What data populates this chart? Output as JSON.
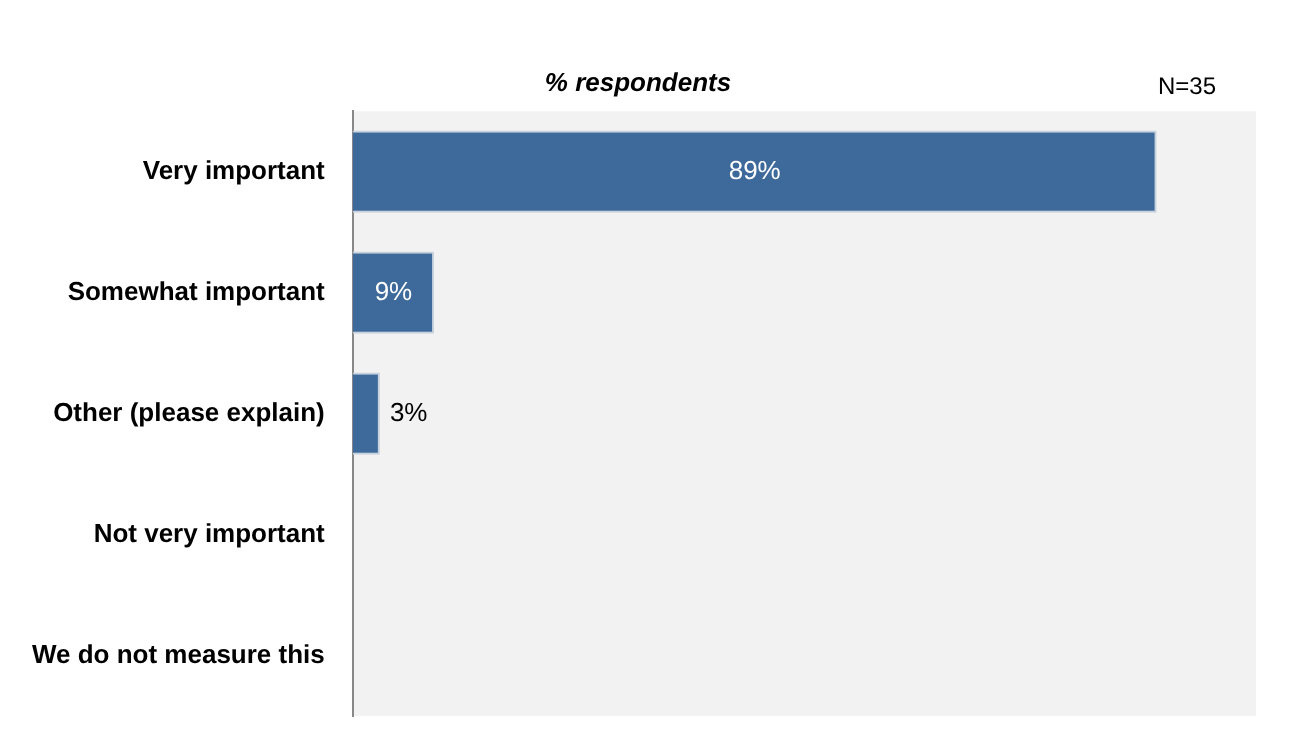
{
  "chart_data": {
    "type": "bar",
    "orientation": "horizontal",
    "title": "% respondents",
    "categories": [
      "Very important",
      "Somewhat important",
      "Other (please explain)",
      "Not very important",
      "We do not measure this"
    ],
    "values": [
      89,
      9,
      3,
      0,
      0
    ],
    "value_labels": [
      "89%",
      "9%",
      "3%",
      null,
      null
    ],
    "color": "#3d6a9b",
    "xlim": [
      0,
      100
    ],
    "tick_labels": "y",
    "legend": false,
    "annotations": [
      "N=35"
    ]
  }
}
